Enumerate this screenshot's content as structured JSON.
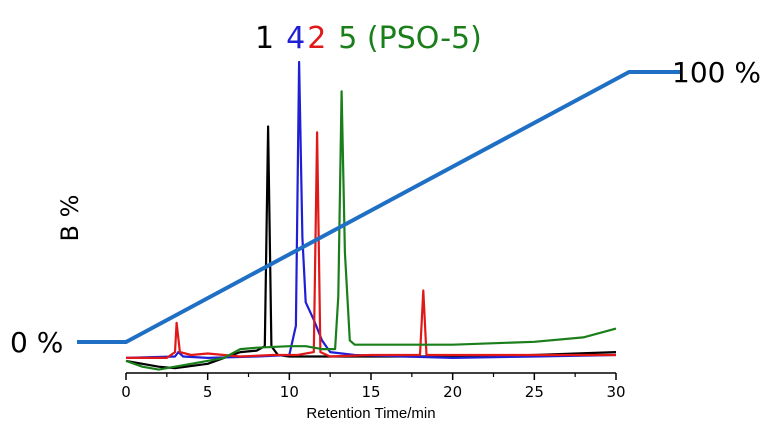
{
  "chart_data": {
    "type": "line",
    "title_parts": [
      {
        "text": "1",
        "color": "#000000"
      },
      {
        "text": "4",
        "color": "#1f1fd6"
      },
      {
        "text": "2",
        "color": "#e01818"
      },
      {
        "text": "5 (PSO-5)",
        "color": "#1a7f1a"
      }
    ],
    "xlabel": "Retention Time/min",
    "ylabel": "B %",
    "xlim": [
      0,
      30
    ],
    "x_ticks": [
      0,
      5,
      10,
      15,
      20,
      25,
      30
    ],
    "x_tick_labels": [
      "0",
      "5",
      "10",
      "15",
      "20",
      "25",
      "30"
    ],
    "gradient": {
      "color": "#1f6fc4",
      "points": [
        [
          -3,
          0
        ],
        [
          0,
          0
        ],
        [
          30.8,
          100
        ],
        [
          34,
          100
        ]
      ],
      "label_start": "0 %",
      "label_end": "100 %"
    },
    "ylim": [
      0,
      100
    ],
    "series": [
      {
        "color": "#000000",
        "points": [
          [
            0,
            -2
          ],
          [
            2,
            -4
          ],
          [
            3,
            -4.5
          ],
          [
            5,
            -3
          ],
          [
            7,
            1
          ],
          [
            8,
            1.5
          ],
          [
            8.5,
            3
          ],
          [
            8.7,
            78
          ],
          [
            8.9,
            3
          ],
          [
            9.3,
            0
          ],
          [
            10,
            -0.5
          ],
          [
            15,
            -0.5
          ],
          [
            20,
            -0.5
          ],
          [
            25,
            0
          ],
          [
            30,
            1
          ]
        ]
      },
      {
        "color": "#1f1fd6",
        "points": [
          [
            0,
            -1
          ],
          [
            3,
            -0.5
          ],
          [
            3.2,
            1
          ],
          [
            3.5,
            -0.5
          ],
          [
            5,
            -1
          ],
          [
            8,
            -0.5
          ],
          [
            10,
            0
          ],
          [
            10.4,
            10
          ],
          [
            10.6,
            100
          ],
          [
            10.8,
            40
          ],
          [
            11,
            18
          ],
          [
            11.5,
            12
          ],
          [
            12,
            5
          ],
          [
            12.5,
            1
          ],
          [
            14,
            0
          ],
          [
            20,
            -1
          ],
          [
            25,
            -0.5
          ],
          [
            30,
            0
          ]
        ]
      },
      {
        "color": "#e01818",
        "points": [
          [
            0,
            -1
          ],
          [
            2.5,
            -1
          ],
          [
            3,
            1
          ],
          [
            3.1,
            11
          ],
          [
            3.3,
            1
          ],
          [
            4,
            0
          ],
          [
            5,
            0.5
          ],
          [
            7,
            -0.5
          ],
          [
            9,
            0
          ],
          [
            10.5,
            0
          ],
          [
            11.5,
            1
          ],
          [
            11.7,
            76
          ],
          [
            11.9,
            1
          ],
          [
            12.5,
            -0.5
          ],
          [
            15,
            0
          ],
          [
            18,
            0
          ],
          [
            18.2,
            22
          ],
          [
            18.4,
            0
          ],
          [
            20,
            0
          ],
          [
            25,
            0
          ],
          [
            30,
            0
          ]
        ]
      },
      {
        "color": "#1a7f1a",
        "points": [
          [
            0,
            -2
          ],
          [
            1,
            -4
          ],
          [
            2,
            -5
          ],
          [
            4,
            -3
          ],
          [
            6,
            -1
          ],
          [
            7,
            2
          ],
          [
            8,
            2.5
          ],
          [
            10,
            3
          ],
          [
            11,
            3
          ],
          [
            12,
            2
          ],
          [
            12.8,
            2
          ],
          [
            13,
            20
          ],
          [
            13.2,
            90
          ],
          [
            13.4,
            35
          ],
          [
            13.7,
            5
          ],
          [
            14,
            3.5
          ],
          [
            20,
            3.5
          ],
          [
            25,
            4.5
          ],
          [
            28,
            6
          ],
          [
            30,
            9
          ]
        ]
      }
    ]
  }
}
